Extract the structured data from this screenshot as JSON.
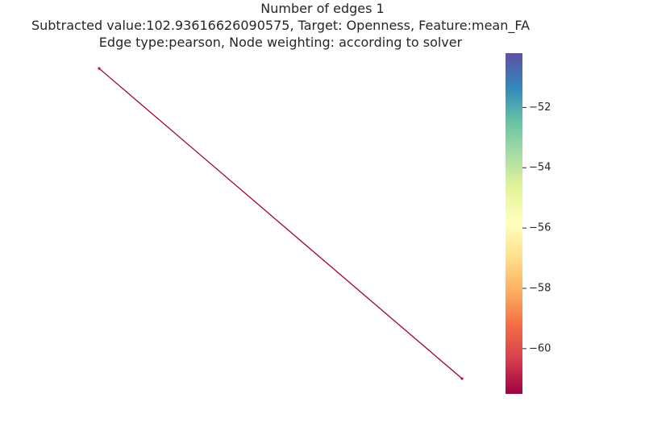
{
  "chart_data": {
    "type": "network",
    "title_lines": [
      "Number of edges 1",
      "Subtracted value:102.93616626090575, Target: Openness, Feature:mean_FA",
      "Edge type:pearson, Node weighting: according to solver"
    ],
    "nodes": [
      {
        "id": "node-a",
        "color": "#b8122f"
      },
      {
        "id": "node-b",
        "color": "#b8122f"
      }
    ],
    "edges": [
      {
        "source": "node-a",
        "target": "node-b",
        "weight": -61.4,
        "color": "#9e0142"
      }
    ],
    "colorbar": {
      "colormap": "Spectral",
      "range": [
        -61.5,
        -50.2
      ],
      "ticks": [
        {
          "value": -52,
          "label": "−52"
        },
        {
          "value": -54,
          "label": "−54"
        },
        {
          "value": -56,
          "label": "−56"
        },
        {
          "value": -58,
          "label": "−58"
        },
        {
          "value": -60,
          "label": "−60"
        }
      ],
      "colors": [
        "#9e0142",
        "#d53e4f",
        "#f46d43",
        "#fdae61",
        "#fee08b",
        "#ffffbf",
        "#e6f598",
        "#abdda4",
        "#66c2a5",
        "#3288bd",
        "#5e4fa2"
      ]
    }
  }
}
